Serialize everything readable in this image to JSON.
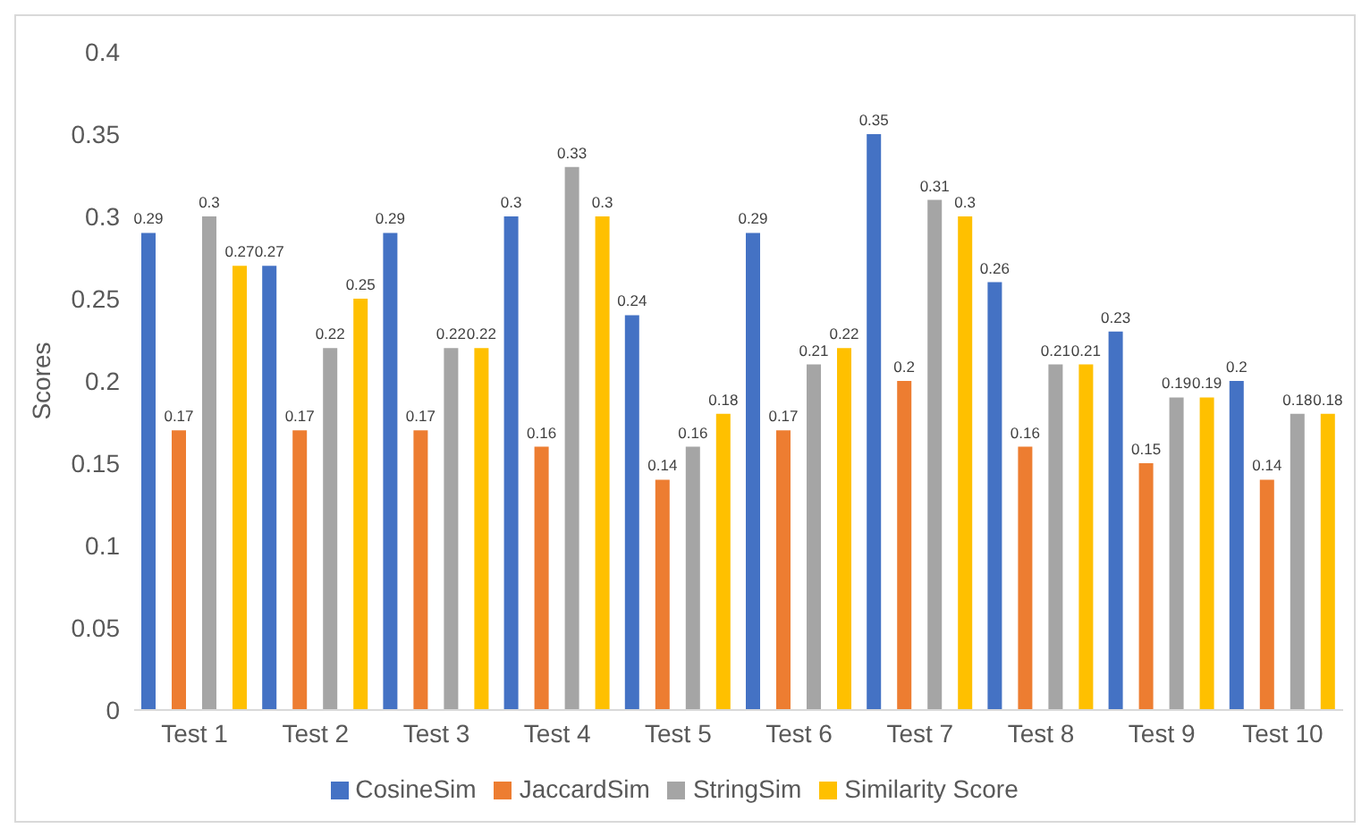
{
  "chart_data": {
    "type": "bar",
    "ylabel": "Scores",
    "categories": [
      "Test 1",
      "Test 2",
      "Test 3",
      "Test 4",
      "Test 5",
      "Test 6",
      "Test 7",
      "Test 8",
      "Test 9",
      "Test 10"
    ],
    "series": [
      {
        "name": "CosineSim",
        "color": "#4472c4",
        "values": [
          0.29,
          0.27,
          0.29,
          0.3,
          0.24,
          0.29,
          0.35,
          0.26,
          0.23,
          0.2
        ]
      },
      {
        "name": "JaccardSim",
        "color": "#ed7d31",
        "values": [
          0.17,
          0.17,
          0.17,
          0.16,
          0.14,
          0.17,
          0.2,
          0.16,
          0.15,
          0.14
        ]
      },
      {
        "name": "StringSim",
        "color": "#a5a5a5",
        "values": [
          0.3,
          0.22,
          0.22,
          0.33,
          0.16,
          0.21,
          0.31,
          0.21,
          0.19,
          0.18
        ]
      },
      {
        "name": "Similarity Score",
        "color": "#ffc000",
        "values": [
          0.27,
          0.25,
          0.22,
          0.3,
          0.18,
          0.22,
          0.3,
          0.21,
          0.19,
          0.18
        ]
      }
    ],
    "ylim": [
      0,
      0.4
    ],
    "yticks": [
      0,
      0.05,
      0.1,
      0.15,
      0.2,
      0.25,
      0.3,
      0.35,
      0.4
    ],
    "grid": false,
    "legend": "bottom",
    "data_labels": true
  }
}
